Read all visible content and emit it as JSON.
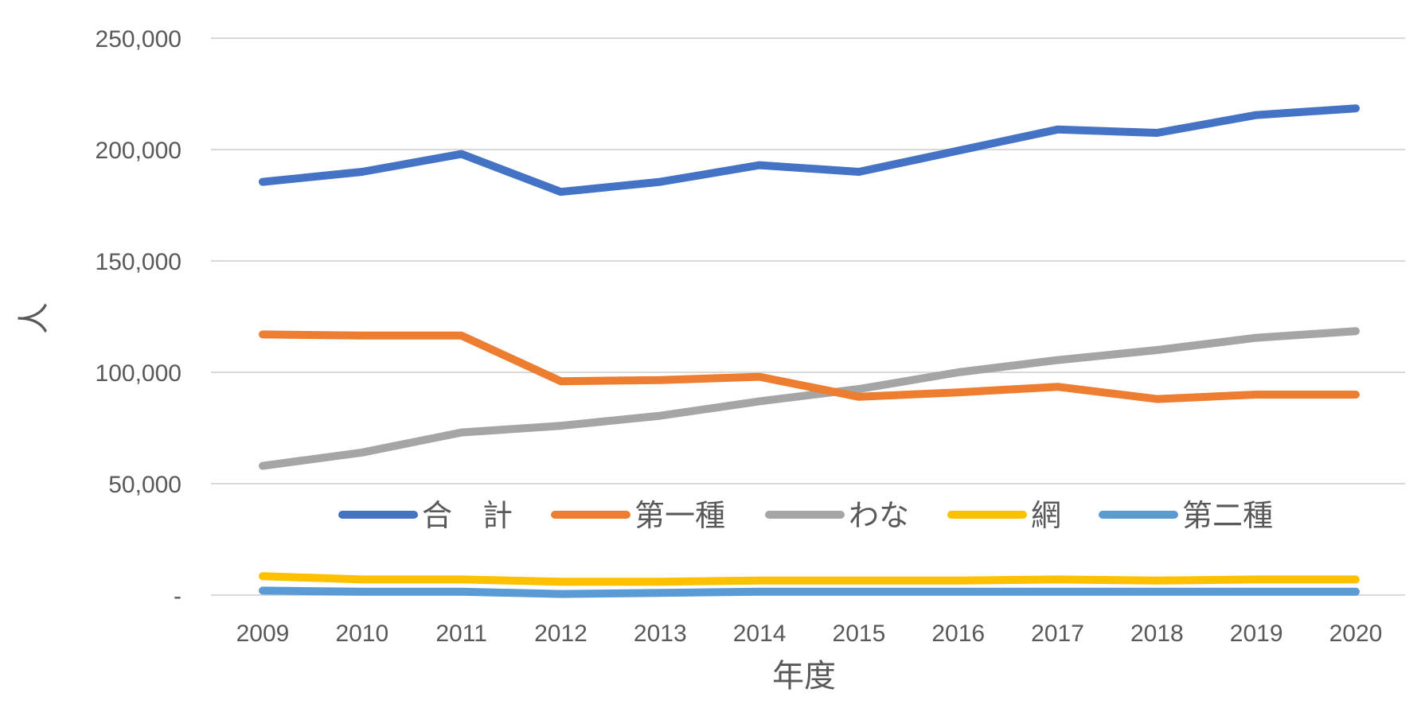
{
  "chart_data": {
    "type": "line",
    "title": "",
    "xlabel": "年度",
    "ylabel": "人",
    "ylim": [
      0,
      250000
    ],
    "yticks": [
      {
        "value": 0,
        "label": "-"
      },
      {
        "value": 50000,
        "label": "50,000"
      },
      {
        "value": 100000,
        "label": "100,000"
      },
      {
        "value": 150000,
        "label": "150,000"
      },
      {
        "value": 200000,
        "label": "200,000"
      },
      {
        "value": 250000,
        "label": "250,000"
      }
    ],
    "grid": true,
    "legend_position": "inside-bottom",
    "categories": [
      "2009",
      "2010",
      "2011",
      "2012",
      "2013",
      "2014",
      "2015",
      "2016",
      "2017",
      "2018",
      "2019",
      "2020"
    ],
    "series": [
      {
        "name": "合　計",
        "color": "#4472C4",
        "values": [
          185500,
          190000,
          198000,
          181000,
          185500,
          193000,
          190000,
          199500,
          209000,
          207500,
          215500,
          218500
        ]
      },
      {
        "name": "第一種",
        "color": "#ED7D31",
        "values": [
          117000,
          116500,
          116500,
          96000,
          96500,
          98000,
          89000,
          91000,
          93500,
          88000,
          90000,
          90000
        ]
      },
      {
        "name": "わな",
        "color": "#A5A5A5",
        "values": [
          58000,
          64000,
          73000,
          76000,
          80500,
          87000,
          92500,
          100000,
          105500,
          110000,
          115500,
          118500
        ]
      },
      {
        "name": "網",
        "color": "#FFC000",
        "values": [
          8500,
          7000,
          7000,
          6000,
          6000,
          6500,
          6500,
          6500,
          7000,
          6500,
          7000,
          7000
        ]
      },
      {
        "name": "第二種",
        "color": "#5B9BD5",
        "values": [
          2000,
          1500,
          1500,
          500,
          1000,
          1500,
          1500,
          1500,
          1500,
          1500,
          1500,
          1500
        ]
      }
    ]
  }
}
